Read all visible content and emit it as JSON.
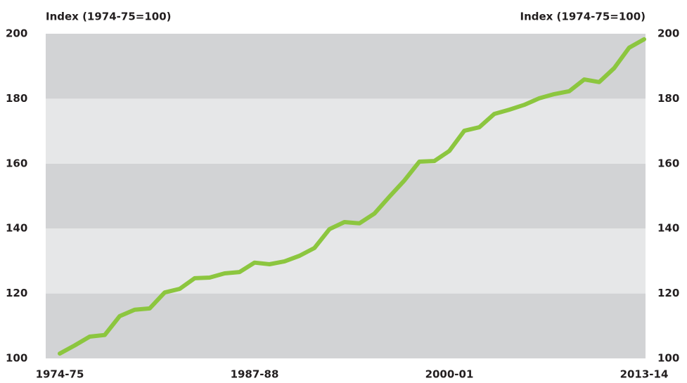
{
  "chart_data": {
    "type": "line",
    "y_label": "Index (1974-75=100)",
    "y2_label": "Index (1974-75=100)",
    "categories": [
      "1974-75",
      null,
      null,
      null,
      null,
      null,
      null,
      null,
      null,
      null,
      null,
      null,
      null,
      "1987-88",
      null,
      null,
      null,
      null,
      null,
      null,
      null,
      null,
      null,
      null,
      null,
      null,
      "2000-01",
      null,
      null,
      null,
      null,
      null,
      null,
      null,
      null,
      null,
      null,
      null,
      null,
      "2013-14"
    ],
    "series": [
      {
        "name": "Index",
        "color": "#8cc63f",
        "values": [
          101.5,
          104,
          106.7,
          107.2,
          113,
          115,
          115.4,
          120.3,
          121.4,
          124.7,
          124.9,
          126.2,
          126.6,
          129.5,
          129,
          129.9,
          131.6,
          134,
          139.8,
          142,
          141.6,
          144.6,
          149.8,
          154.8,
          160.6,
          160.8,
          163.9,
          170.1,
          171.2,
          175.3,
          176.6,
          178.1,
          180.1,
          181.4,
          182.3,
          185.9,
          185.1,
          189.4,
          195.7,
          198.3
        ]
      }
    ],
    "ylim": [
      100,
      200
    ],
    "yticks": [
      100,
      120,
      140,
      160,
      180,
      200
    ],
    "y2lim": [
      100,
      200
    ],
    "y2ticks": [
      100,
      120,
      140,
      160,
      180,
      200
    ],
    "band_colors": [
      "#d2d3d5",
      "#e6e7e8"
    ]
  }
}
